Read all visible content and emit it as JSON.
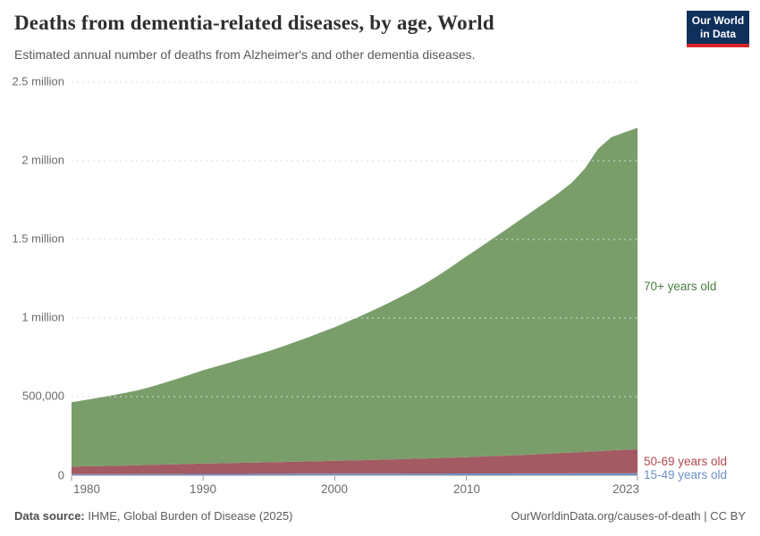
{
  "header": {
    "title": "Deaths from dementia-related diseases, by age, World",
    "subtitle": "Estimated annual number of deaths from Alzheimer's and other dementia diseases.",
    "logo": {
      "line1": "Our World",
      "line2": "in Data"
    },
    "logo_colors": {
      "background": "#10305c",
      "accent": "#d8232a"
    }
  },
  "chart_data": {
    "type": "area",
    "stacked": true,
    "title": "Deaths from dementia-related diseases, by age, World",
    "xlabel": "",
    "ylabel": "",
    "values_unit": "thousands of deaths per year",
    "grid": "dashed horizontal",
    "legend_position": "right edge, inline series labels",
    "ylim": [
      0,
      2500
    ],
    "x": [
      1980,
      1981,
      1982,
      1983,
      1984,
      1985,
      1986,
      1987,
      1988,
      1989,
      1990,
      1991,
      1992,
      1993,
      1994,
      1995,
      1996,
      1997,
      1998,
      1999,
      2000,
      2001,
      2002,
      2003,
      2004,
      2005,
      2006,
      2007,
      2008,
      2009,
      2010,
      2011,
      2012,
      2013,
      2014,
      2015,
      2016,
      2017,
      2018,
      2019,
      2020,
      2021,
      2022,
      2023
    ],
    "series": [
      {
        "name": "15-49 years old",
        "color": "#7291c4",
        "label_color": "#6d8fc9",
        "values": [
          7.0,
          7.1,
          7.2,
          7.4,
          7.6,
          7.7,
          7.8,
          8.0,
          8.1,
          8.3,
          8.4,
          8.5,
          8.7,
          8.8,
          9.0,
          9.1,
          9.2,
          9.4,
          9.5,
          9.7,
          9.8,
          9.9,
          10.1,
          10.2,
          10.4,
          10.5,
          10.6,
          10.8,
          10.9,
          11.1,
          11.2,
          11.3,
          11.5,
          11.6,
          11.8,
          11.9,
          12.0,
          12.2,
          12.3,
          12.5,
          12.6,
          12.7,
          12.9,
          13.0
        ]
      },
      {
        "name": "50-69 years old",
        "color": "#a35a63",
        "label_color": "#b0494f",
        "values": [
          48.0,
          49.5,
          51.1,
          52.7,
          54.3,
          56.0,
          57.9,
          59.9,
          61.9,
          63.9,
          66.0,
          67.6,
          69.2,
          70.8,
          72.4,
          74.0,
          75.6,
          77.2,
          78.8,
          80.4,
          82.0,
          84.0,
          86.0,
          88.0,
          90.0,
          92.0,
          94.4,
          96.8,
          99.2,
          101.6,
          104.0,
          107.2,
          110.4,
          113.6,
          116.8,
          120.0,
          124.0,
          128.0,
          132.0,
          136.0,
          140.0,
          146.0,
          149.0,
          152.0
        ]
      },
      {
        "name": "70+ years old",
        "color": "#7a9e6a",
        "label_color": "#4b7d43",
        "values": [
          410.0,
          421.4,
          433.6,
          446.9,
          461.1,
          476.3,
          496.3,
          519.1,
          543.0,
          567.8,
          593.6,
          615.9,
          638.1,
          661.4,
          683.6,
          706.9,
          733.2,
          761.4,
          789.7,
          819.9,
          850.2,
          884.1,
          917.9,
          953.8,
          991.6,
          1031.5,
          1073.0,
          1118.4,
          1167.9,
          1221.3,
          1276.8,
          1329.5,
          1383.1,
          1436.8,
          1491.4,
          1546.1,
          1600.0,
          1654.8,
          1715.7,
          1801.5,
          1922.4,
          1991.3,
          2018.1,
          2045.0
        ]
      }
    ],
    "yticks": [
      {
        "value": 0,
        "label": "0"
      },
      {
        "value": 500,
        "label": "500,000"
      },
      {
        "value": 1000,
        "label": "1 million"
      },
      {
        "value": 1500,
        "label": "1.5 million"
      },
      {
        "value": 2000,
        "label": "2 million"
      },
      {
        "value": 2500,
        "label": "2.5 million"
      }
    ],
    "xticks": [
      {
        "year": 1980,
        "label": "1980"
      },
      {
        "year": 1990,
        "label": "1990"
      },
      {
        "year": 2000,
        "label": "2000"
      },
      {
        "year": 2010,
        "label": "2010"
      },
      {
        "year": 2023,
        "label": "2023"
      }
    ]
  },
  "footer": {
    "source_label": "Data source:",
    "source_text": " IHME, Global Burden of Disease (2025)",
    "credit": "OurWorldinData.org/causes-of-death | CC BY"
  }
}
